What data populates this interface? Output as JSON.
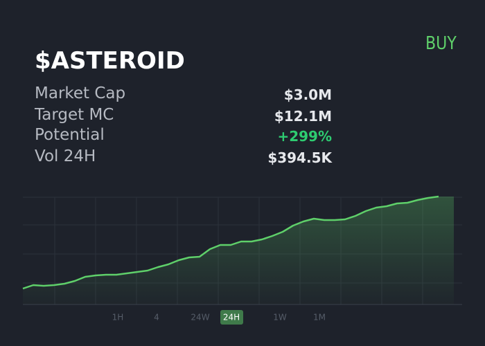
{
  "header": {
    "title": "$ASTEROID",
    "action": "BUY",
    "action_color": "#5fd06a"
  },
  "stats": [
    {
      "label": "Market Cap",
      "value": "$3.0M",
      "color": "#e6e8ec"
    },
    {
      "label": "Target MC",
      "value": "$12.1M",
      "color": "#e6e8ec"
    },
    {
      "label": "Potential",
      "value": "+299%",
      "color": "#2ecc71"
    },
    {
      "label": "Vol 24H",
      "value": "$394.5K",
      "color": "#e6e8ec"
    }
  ],
  "chart_data": {
    "type": "area",
    "color": "#5fd06a",
    "values": [
      23,
      28,
      27,
      28,
      30,
      34,
      40,
      42,
      43,
      43,
      45,
      47,
      49,
      54,
      58,
      64,
      68,
      69,
      80,
      86,
      86,
      91,
      91,
      94,
      99,
      105,
      114,
      120,
      124,
      122,
      122,
      123,
      128,
      135,
      140,
      142,
      146,
      147,
      151,
      154,
      156
    ],
    "ylim": [
      0,
      156
    ],
    "yticks": [
      31,
      73,
      115,
      155
    ],
    "grid": true
  },
  "timeframes": {
    "options": [
      "1H",
      "4",
      "24W",
      "24H",
      "1W",
      "1M"
    ],
    "selected_index": 3
  }
}
